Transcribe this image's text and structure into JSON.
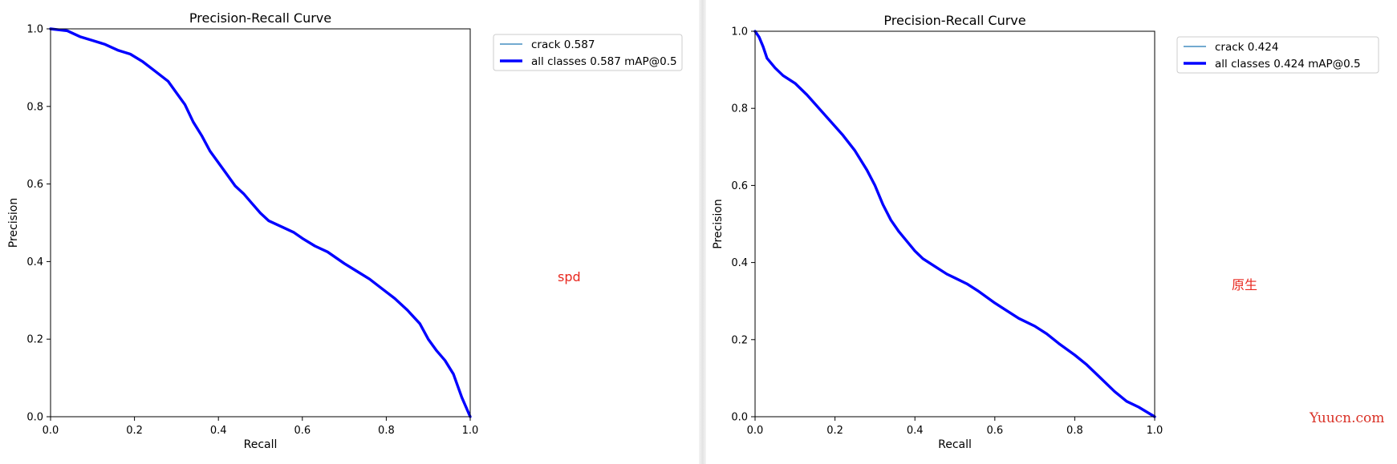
{
  "chart_data": [
    {
      "type": "line",
      "title": "Precision-Recall Curve",
      "xlabel": "Recall",
      "ylabel": "Precision",
      "xlim": [
        0,
        1
      ],
      "ylim": [
        0,
        1
      ],
      "xticks": [
        "0.0",
        "0.2",
        "0.4",
        "0.6",
        "0.8",
        "1.0"
      ],
      "yticks": [
        "0.0",
        "0.2",
        "0.4",
        "0.6",
        "0.8",
        "1.0"
      ],
      "grid": false,
      "legend_position": "outside-top-right",
      "series": [
        {
          "name": "crack 0.587",
          "color": "#1f77b4",
          "x": [
            0,
            0.04,
            0.07,
            0.1,
            0.13,
            0.16,
            0.19,
            0.22,
            0.25,
            0.28,
            0.3,
            0.32,
            0.34,
            0.36,
            0.38,
            0.4,
            0.42,
            0.44,
            0.46,
            0.48,
            0.5,
            0.52,
            0.55,
            0.58,
            0.6,
            0.63,
            0.66,
            0.7,
            0.73,
            0.76,
            0.79,
            0.82,
            0.85,
            0.88,
            0.9,
            0.92,
            0.94,
            0.96,
            0.98,
            1.0
          ],
          "y": [
            1.0,
            0.995,
            0.98,
            0.97,
            0.96,
            0.945,
            0.935,
            0.915,
            0.89,
            0.865,
            0.835,
            0.805,
            0.76,
            0.725,
            0.685,
            0.655,
            0.625,
            0.595,
            0.575,
            0.55,
            0.525,
            0.505,
            0.49,
            0.475,
            0.46,
            0.44,
            0.425,
            0.395,
            0.375,
            0.355,
            0.33,
            0.305,
            0.275,
            0.24,
            0.2,
            0.17,
            0.145,
            0.11,
            0.05,
            0.0
          ]
        },
        {
          "name": "all classes 0.587 mAP@0.5",
          "color": "#0000ff",
          "x": [
            0,
            0.04,
            0.07,
            0.1,
            0.13,
            0.16,
            0.19,
            0.22,
            0.25,
            0.28,
            0.3,
            0.32,
            0.34,
            0.36,
            0.38,
            0.4,
            0.42,
            0.44,
            0.46,
            0.48,
            0.5,
            0.52,
            0.55,
            0.58,
            0.6,
            0.63,
            0.66,
            0.7,
            0.73,
            0.76,
            0.79,
            0.82,
            0.85,
            0.88,
            0.9,
            0.92,
            0.94,
            0.96,
            0.98,
            1.0
          ],
          "y": [
            1.0,
            0.995,
            0.98,
            0.97,
            0.96,
            0.945,
            0.935,
            0.915,
            0.89,
            0.865,
            0.835,
            0.805,
            0.76,
            0.725,
            0.685,
            0.655,
            0.625,
            0.595,
            0.575,
            0.55,
            0.525,
            0.505,
            0.49,
            0.475,
            0.46,
            0.44,
            0.425,
            0.395,
            0.375,
            0.355,
            0.33,
            0.305,
            0.275,
            0.24,
            0.2,
            0.17,
            0.145,
            0.11,
            0.05,
            0.0
          ]
        }
      ]
    },
    {
      "type": "line",
      "title": "Precision-Recall Curve",
      "xlabel": "Recall",
      "ylabel": "Precision",
      "xlim": [
        0,
        1
      ],
      "ylim": [
        0,
        1
      ],
      "xticks": [
        "0.0",
        "0.2",
        "0.4",
        "0.6",
        "0.8",
        "1.0"
      ],
      "yticks": [
        "0.0",
        "0.2",
        "0.4",
        "0.6",
        "0.8",
        "1.0"
      ],
      "grid": false,
      "legend_position": "outside-top-right",
      "series": [
        {
          "name": "crack 0.424",
          "color": "#1f77b4",
          "x": [
            0,
            0.01,
            0.02,
            0.03,
            0.05,
            0.07,
            0.1,
            0.13,
            0.16,
            0.19,
            0.22,
            0.25,
            0.28,
            0.3,
            0.32,
            0.34,
            0.36,
            0.38,
            0.4,
            0.42,
            0.45,
            0.48,
            0.5,
            0.53,
            0.56,
            0.6,
            0.63,
            0.66,
            0.7,
            0.73,
            0.76,
            0.8,
            0.83,
            0.86,
            0.9,
            0.93,
            0.96,
            1.0
          ],
          "y": [
            1.0,
            0.985,
            0.96,
            0.93,
            0.905,
            0.885,
            0.865,
            0.835,
            0.8,
            0.765,
            0.73,
            0.69,
            0.64,
            0.6,
            0.55,
            0.51,
            0.48,
            0.455,
            0.43,
            0.41,
            0.39,
            0.37,
            0.36,
            0.345,
            0.325,
            0.295,
            0.275,
            0.255,
            0.235,
            0.215,
            0.19,
            0.16,
            0.135,
            0.105,
            0.065,
            0.04,
            0.025,
            0.0
          ]
        },
        {
          "name": "all classes 0.424 mAP@0.5",
          "color": "#0000ff",
          "x": [
            0,
            0.01,
            0.02,
            0.03,
            0.05,
            0.07,
            0.1,
            0.13,
            0.16,
            0.19,
            0.22,
            0.25,
            0.28,
            0.3,
            0.32,
            0.34,
            0.36,
            0.38,
            0.4,
            0.42,
            0.45,
            0.48,
            0.5,
            0.53,
            0.56,
            0.6,
            0.63,
            0.66,
            0.7,
            0.73,
            0.76,
            0.8,
            0.83,
            0.86,
            0.9,
            0.93,
            0.96,
            1.0
          ],
          "y": [
            1.0,
            0.985,
            0.96,
            0.93,
            0.905,
            0.885,
            0.865,
            0.835,
            0.8,
            0.765,
            0.73,
            0.69,
            0.64,
            0.6,
            0.55,
            0.51,
            0.48,
            0.455,
            0.43,
            0.41,
            0.39,
            0.37,
            0.36,
            0.345,
            0.325,
            0.295,
            0.275,
            0.255,
            0.235,
            0.215,
            0.19,
            0.16,
            0.135,
            0.105,
            0.065,
            0.04,
            0.025,
            0.0
          ]
        }
      ]
    }
  ],
  "notes": {
    "left": "spd",
    "right": "原生"
  },
  "watermark": "Yuucn.com"
}
